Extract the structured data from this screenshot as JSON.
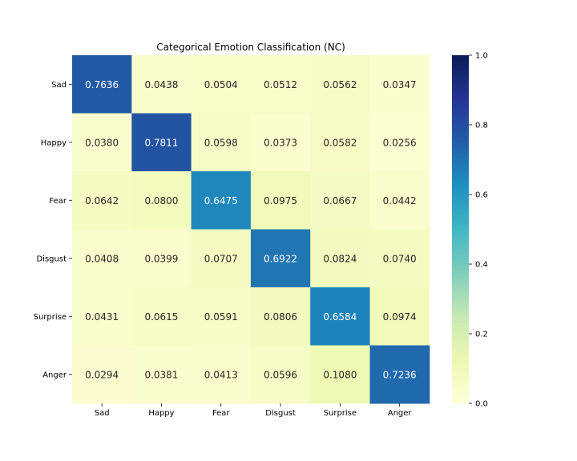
{
  "chart_data": {
    "type": "heatmap",
    "title": "Categorical Emotion Classification (NC)",
    "xlabel": "",
    "ylabel": "",
    "x_categories": [
      "Sad",
      "Happy",
      "Fear",
      "Disgust",
      "Surprise",
      "Anger"
    ],
    "y_categories": [
      "Sad",
      "Happy",
      "Fear",
      "Disgust",
      "Surprise",
      "Anger"
    ],
    "values": [
      [
        0.7636,
        0.0438,
        0.0504,
        0.0512,
        0.0562,
        0.0347
      ],
      [
        0.038,
        0.7811,
        0.0598,
        0.0373,
        0.0582,
        0.0256
      ],
      [
        0.0642,
        0.08,
        0.6475,
        0.0975,
        0.0667,
        0.0442
      ],
      [
        0.0408,
        0.0399,
        0.0707,
        0.6922,
        0.0824,
        0.074
      ],
      [
        0.0431,
        0.0615,
        0.0591,
        0.0806,
        0.6584,
        0.0974
      ],
      [
        0.0294,
        0.0381,
        0.0413,
        0.0596,
        0.108,
        0.7236
      ]
    ],
    "value_format": "4 decimals",
    "colormap": "YlGnBu",
    "colorbar": {
      "range": [
        0.0,
        1.0
      ],
      "ticks": [
        "0.0",
        "0.2",
        "0.4",
        "0.6",
        "0.8",
        "1.0"
      ]
    }
  }
}
